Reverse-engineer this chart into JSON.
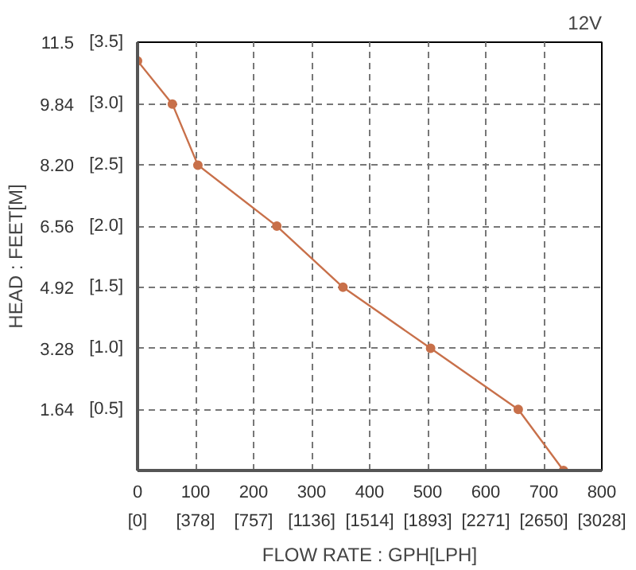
{
  "chart_data": {
    "type": "line",
    "title": "12V",
    "xlabel": "FLOW RATE : GPH[LPH]",
    "ylabel": "HEAD : FEET[M]",
    "x": [
      0,
      60,
      104,
      240,
      354,
      505,
      656,
      734
    ],
    "series": [
      {
        "color": "#c8704a",
        "values": [
          11.0,
          9.84,
          8.2,
          6.56,
          4.92,
          3.28,
          1.64,
          0
        ]
      }
    ],
    "xlim": [
      0,
      800
    ],
    "ylim": [
      0,
      11.5
    ],
    "xticks": [
      0,
      100,
      200,
      300,
      400,
      500,
      600,
      700,
      800
    ],
    "x2lim": [
      0,
      3028
    ],
    "x2ticks": [
      {
        "value": 0,
        "label": "[0]"
      },
      {
        "value": 378,
        "label": "[378]"
      },
      {
        "value": 757,
        "label": "[757]"
      },
      {
        "value": 1136,
        "label": "[1136]"
      },
      {
        "value": 1514,
        "label": "[1514]"
      },
      {
        "value": 1893,
        "label": "[1893]"
      },
      {
        "value": 2271,
        "label": "[2271]"
      },
      {
        "value": 2650,
        "label": "[2650]"
      },
      {
        "value": 3028,
        "label": "[3028]"
      }
    ],
    "yticks": [
      1.64,
      3.28,
      4.92,
      6.56,
      {
        "value": 8.2,
        "label": "8.20"
      },
      9.84,
      11.5
    ],
    "y2lim": [
      0,
      3.5
    ],
    "y2ticks": [
      {
        "value": 0.5,
        "label": "[0.5]"
      },
      {
        "value": 1.0,
        "label": "[1.0]"
      },
      {
        "value": 1.5,
        "label": "[1.5]"
      },
      {
        "value": 2.0,
        "label": "[2.0]"
      },
      {
        "value": 2.5,
        "label": "[2.5]"
      },
      {
        "value": 3.0,
        "label": "[3.0]"
      },
      {
        "value": 3.5,
        "label": "[3.5]"
      }
    ],
    "grid": true,
    "marker": "circle",
    "line_style": "solid"
  }
}
